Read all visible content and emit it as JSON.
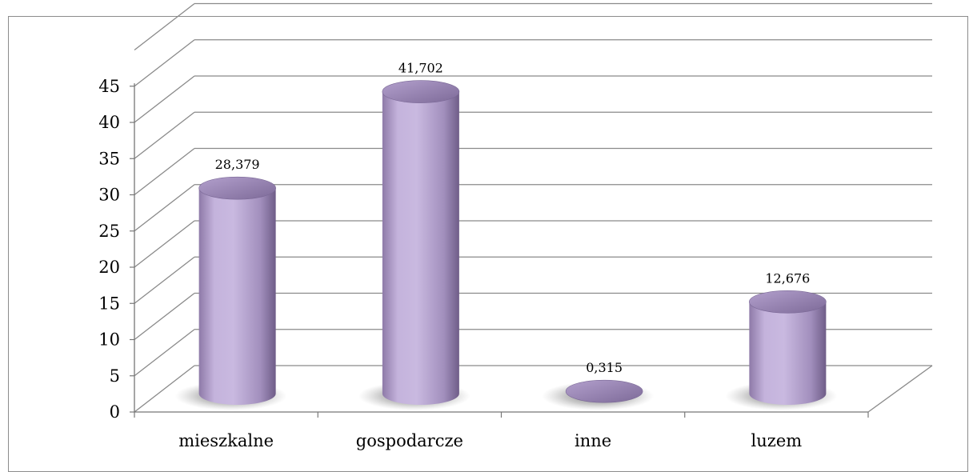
{
  "chart_data": {
    "type": "bar",
    "style": "3d-cylinder",
    "title": "",
    "xlabel": "",
    "ylabel": "",
    "categories": [
      "mieszkalne",
      "gospodarcze",
      "inne",
      "luzem"
    ],
    "values": [
      28.379,
      41.702,
      0.315,
      12.676
    ],
    "value_labels": [
      "28,379",
      "41,702",
      "0,315",
      "12,676"
    ],
    "ylim": [
      0,
      45
    ],
    "yticks": [
      "0",
      "5",
      "10",
      "15",
      "20",
      "25",
      "30",
      "35",
      "40",
      "45"
    ],
    "grid": true,
    "legend": "none",
    "bar_color": "#b9a6d1"
  }
}
